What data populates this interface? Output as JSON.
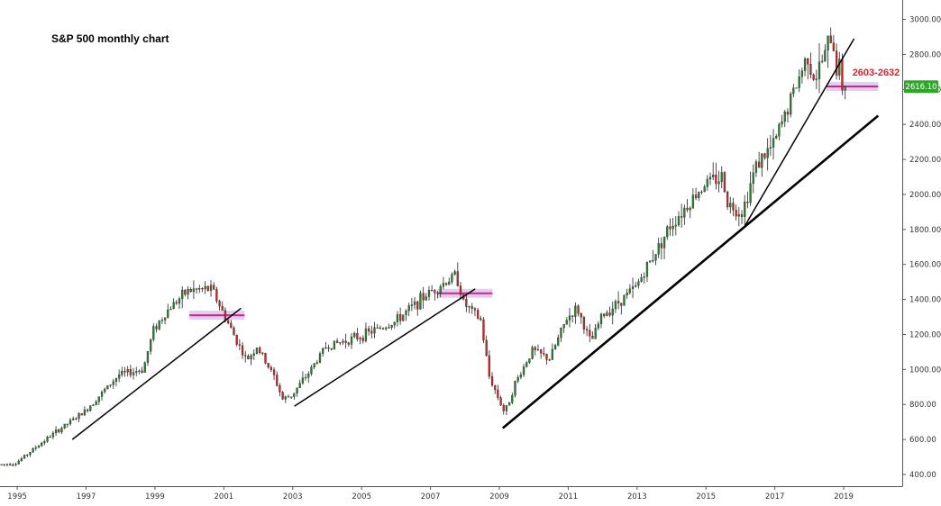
{
  "chart_data": {
    "type": "candlestick",
    "title": "S&P 500 monthly chart",
    "y_ticks": [
      400,
      600,
      800,
      1000,
      1200,
      1400,
      1600,
      1800,
      2000,
      2200,
      2400,
      2600,
      2800,
      3000
    ],
    "y_tick_labels": [
      "400.00",
      "600.00",
      "800.00",
      "1000.00",
      "1200.00",
      "1400.00",
      "1600.00",
      "1800.00",
      "2000.00",
      "2200.00",
      "2400.00",
      "2600.00",
      "2800.00",
      "3000.00"
    ],
    "ylim": [
      333,
      3111
    ],
    "xlim": [
      1994.5,
      2020.7
    ],
    "x_ticks": [
      1995,
      1997,
      1999,
      2001,
      2003,
      2005,
      2007,
      2009,
      2011,
      2013,
      2015,
      2017,
      2019
    ],
    "x_tick_labels": [
      "1995",
      "1997",
      "1999",
      "2001",
      "2003",
      "2005",
      "2007",
      "2009",
      "2011",
      "2013",
      "2015",
      "2017",
      "2019"
    ],
    "last_price": 2616.1,
    "last_price_label": "2616.10",
    "up_color": "#2e7d32",
    "down_color": "#c62828",
    "key_points": [
      [
        1994.5,
        455
      ],
      [
        1995.0,
        465
      ],
      [
        1996.0,
        620
      ],
      [
        1997.0,
        760
      ],
      [
        1998.0,
        970
      ],
      [
        1998.7,
        1000
      ],
      [
        1999.0,
        1230
      ],
      [
        1999.5,
        1360
      ],
      [
        2000.0,
        1450
      ],
      [
        2000.7,
        1460
      ],
      [
        2001.0,
        1330
      ],
      [
        2001.7,
        1050
      ],
      [
        2002.0,
        1130
      ],
      [
        2002.5,
        960
      ],
      [
        2002.75,
        830
      ],
      [
        2003.0,
        850
      ],
      [
        2003.5,
        980
      ],
      [
        2004.0,
        1130
      ],
      [
        2005.0,
        1190
      ],
      [
        2006.0,
        1270
      ],
      [
        2007.0,
        1440
      ],
      [
        2007.8,
        1540
      ],
      [
        2008.0,
        1380
      ],
      [
        2008.5,
        1280
      ],
      [
        2008.75,
        960
      ],
      [
        2009.2,
        750
      ],
      [
        2009.5,
        920
      ],
      [
        2010.0,
        1110
      ],
      [
        2010.5,
        1060
      ],
      [
        2011.0,
        1290
      ],
      [
        2011.3,
        1350
      ],
      [
        2011.7,
        1150
      ],
      [
        2012.0,
        1300
      ],
      [
        2013.0,
        1470
      ],
      [
        2014.0,
        1820
      ],
      [
        2015.0,
        2060
      ],
      [
        2015.5,
        2100
      ],
      [
        2015.7,
        1940
      ],
      [
        2016.1,
        1900
      ],
      [
        2016.5,
        2170
      ],
      [
        2017.0,
        2280
      ],
      [
        2018.0,
        2800
      ],
      [
        2018.2,
        2650
      ],
      [
        2018.7,
        2910
      ],
      [
        2018.83,
        2720
      ],
      [
        2018.92,
        2740
      ],
      [
        2019.0,
        2620
      ]
    ],
    "trendlines": [
      {
        "x1": 1996.6,
        "y1": 600,
        "x2": 2001.5,
        "y2": 1350,
        "weight": "thin"
      },
      {
        "x1": 2003.05,
        "y1": 790,
        "x2": 2008.3,
        "y2": 1460,
        "weight": "thin"
      },
      {
        "x1": 2009.1,
        "y1": 665,
        "x2": 2020.0,
        "y2": 2450,
        "weight": "thick"
      },
      {
        "x1": 2016.1,
        "y1": 1810,
        "x2": 2019.3,
        "y2": 2890,
        "weight": "thin"
      }
    ],
    "resistance_zones": [
      {
        "x1": 2000.0,
        "x2": 2001.6,
        "y": 1310
      },
      {
        "x1": 2007.2,
        "x2": 2008.8,
        "y": 1435
      },
      {
        "x1": 2018.5,
        "x2": 2020.0,
        "y": 2617,
        "label": "2603-2632"
      }
    ]
  }
}
